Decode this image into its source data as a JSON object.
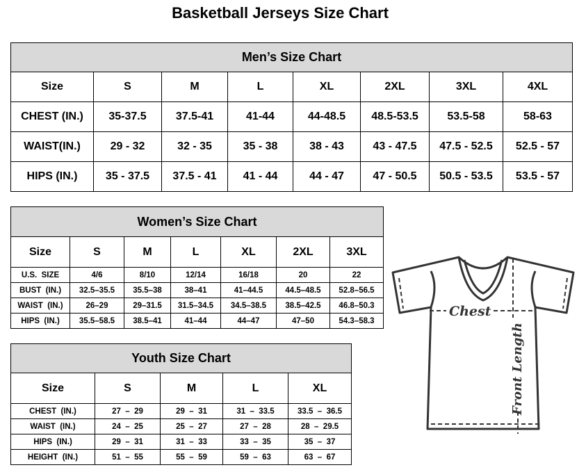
{
  "title": "Basketball Jerseys Size Chart",
  "men": {
    "title": "Men’s Size Chart",
    "header": [
      "Size",
      "S",
      "M",
      "L",
      "XL",
      "2XL",
      "3XL",
      "4XL"
    ],
    "rows": [
      [
        "CHEST (IN.)",
        "35-37.5",
        "37.5-41",
        "41-44",
        "44-48.5",
        "48.5-53.5",
        "53.5-58",
        "58-63"
      ],
      [
        "WAIST(IN.)",
        "29 - 32",
        "32 - 35",
        "35 - 38",
        "38 - 43",
        "43 - 47.5",
        "47.5 - 52.5",
        "52.5 - 57"
      ],
      [
        "HIPS (IN.)",
        "35 - 37.5",
        "37.5 - 41",
        "41 - 44",
        "44 - 47",
        "47 - 50.5",
        "50.5 - 53.5",
        "53.5 - 57"
      ]
    ]
  },
  "women": {
    "title": "Women’s Size Chart",
    "header": [
      "Size",
      "S",
      "M",
      "L",
      "XL",
      "2XL",
      "3XL"
    ],
    "rows": [
      [
        "U.S.  SIZE",
        "4/6",
        "8/10",
        "12/14",
        "16/18",
        "20",
        "22"
      ],
      [
        "BUST  (IN.)",
        "32.5–35.5",
        "35.5–38",
        "38–41",
        "41–44.5",
        "44.5–48.5",
        "52.8–56.5"
      ],
      [
        "WAIST  (IN.)",
        "26–29",
        "29–31.5",
        "31.5–34.5",
        "34.5–38.5",
        "38.5–42.5",
        "46.8–50.3"
      ],
      [
        "HIPS  (IN.)",
        "35.5–58.5",
        "38.5–41",
        "41–44",
        "44–47",
        "47–50",
        "54.3–58.3"
      ]
    ]
  },
  "youth": {
    "title": "Youth Size Chart",
    "header": [
      "Size",
      "S",
      "M",
      "L",
      "XL"
    ],
    "rows": [
      [
        "CHEST  (IN.)",
        "27  –  29",
        "29  –  31",
        "31  –  33.5",
        "33.5  –  36.5"
      ],
      [
        "WAIST  (IN.)",
        "24  –  25",
        "25  –  27",
        "27  –  28",
        "28  –  29.5"
      ],
      [
        "HIPS  (IN.)",
        "29  –  31",
        "31  –  33",
        "33  –  35",
        "35  –  37"
      ],
      [
        "HEIGHT  (IN.)",
        "51  –  55",
        "55  –  59",
        "59  –  63",
        "63  –  67"
      ]
    ]
  },
  "diagram": {
    "chest_label": "Chest",
    "length_label": "Front Length"
  }
}
